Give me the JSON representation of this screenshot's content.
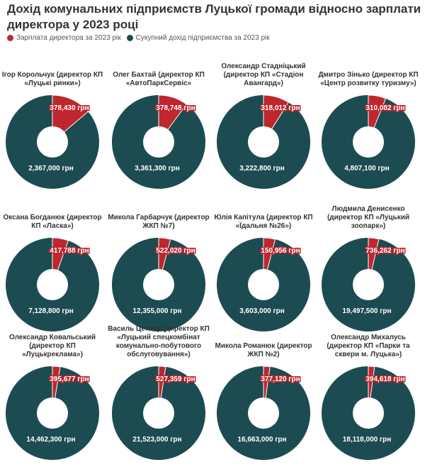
{
  "title": "Дохід комунальних підприємств Луцької громади відносно зарплати директора у 2023 році",
  "legend": {
    "salary": "Зарплата директора за 2023 рік",
    "revenue": "Сукупний дохід підприємства за 2023 рік"
  },
  "colors": {
    "salary": "#c0262d",
    "revenue": "#1c4c52",
    "hole": "#ffffff"
  },
  "chart_data": {
    "type": "pie",
    "series": [
      {
        "name": "Зарплата директора за 2023 рік"
      },
      {
        "name": "Сукупний дохід підприємства за 2023 рік"
      }
    ],
    "charts": [
      {
        "title": "Ігор Корольчук (директор КП «Луцькі ринки»)",
        "salary": 378430,
        "revenue": 2367000,
        "salary_label": "378,430 грн",
        "revenue_label": "2,367,000 грн"
      },
      {
        "title": "Олег Бахтай (директор КП «АвтоПаркСервіс»",
        "salary": 378748,
        "revenue": 3361300,
        "salary_label": "378,748 грн",
        "revenue_label": "3,361,300 грн"
      },
      {
        "title": "Олександр Стадніцький (директор КП «Стадіон Авангард»)",
        "salary": 318012,
        "revenue": 3222800,
        "salary_label": "318,012 грн",
        "revenue_label": "3,222,800 грн"
      },
      {
        "title": "Дмитро Зінько (директор КП «Центр розвитку туризму»)",
        "salary": 310082,
        "revenue": 4807100,
        "salary_label": "310,082 грн",
        "revenue_label": "4,807,100 грн"
      },
      {
        "title": "Оксана Богданюк (директор КП «Ласка»)",
        "salary": 417788,
        "revenue": 7128800,
        "salary_label": "417,788 грн",
        "revenue_label": "7,128,800 грн"
      },
      {
        "title": "Микола Гарбарчук (директор ЖКП №7)",
        "salary": 522020,
        "revenue": 12355000,
        "salary_label": "522,020 грн",
        "revenue_label": "12,355,000 грн"
      },
      {
        "title": "Юлія Капітула (директор КП «Їдальня №26»)",
        "salary": 150956,
        "revenue": 3603000,
        "salary_label": "150,956 грн",
        "revenue_label": "3,603,000 грн"
      },
      {
        "title": "Людмила Денисенко (директор КП «Луцький зоопарк»)",
        "salary": 736262,
        "revenue": 19497500,
        "salary_label": "736,262 грн",
        "revenue_label": "19,497,500 грн"
      },
      {
        "title": "Олександр Ковальський (директор КП «Луцькреклама»)",
        "salary": 395677,
        "revenue": 14462300,
        "salary_label": "395,677 грн",
        "revenue_label": "14,462,300 грн"
      },
      {
        "title": "Василь Цетнар (директор КП «Луцький спецкомбінат комунально-побутового обслуговування»)",
        "salary": 527359,
        "revenue": 21523000,
        "salary_label": "527,359 грн",
        "revenue_label": "21,523,000 грн"
      },
      {
        "title": "Микола Романюк (директор ЖКП №2)",
        "salary": 377120,
        "revenue": 16663000,
        "salary_label": "377,120 грн",
        "revenue_label": "16,663,000 грн"
      },
      {
        "title": "Олександр Михалусь (директор КП «Парки та сквери м. Луцька»)",
        "salary": 394618,
        "revenue": 18118000,
        "salary_label": "394,618 грн",
        "revenue_label": "18,118,000 грн"
      }
    ]
  }
}
